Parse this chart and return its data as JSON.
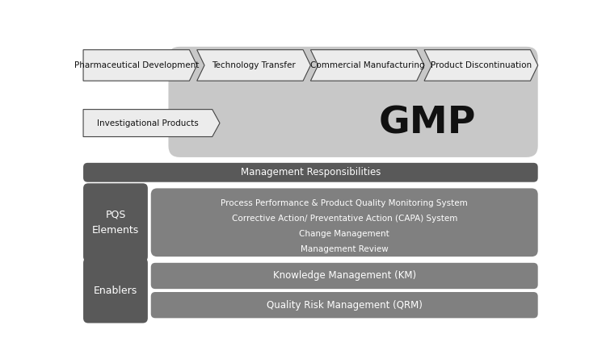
{
  "background_color": "#ffffff",
  "fig_width": 7.5,
  "fig_height": 4.5,
  "dpi": 100,
  "lifecycle_steps": [
    "Pharmaceutical Development",
    "Technology Transfer",
    "Commercial Manufacturing",
    "Product Discontinuation"
  ],
  "investigational": "Investigational Products",
  "gmp_label": "GMP",
  "management_bar": "Management Responsibilities",
  "pqs_label": "PQS\nElements",
  "pqs_items": [
    "Process Performance & Product Quality Monitoring System",
    "Corrective Action/ Preventative Action (CAPA) System",
    "Change Management",
    "Management Review"
  ],
  "enablers_label": "Enablers",
  "enablers_items": [
    "Knowledge Management (KM)",
    "Quality Risk Management (QRM)"
  ],
  "color_gmp_bg": "#c8c8c8",
  "color_dark_gray": "#595959",
  "color_mid_gray": "#808080",
  "color_chevron_fill": "#ececec",
  "color_chevron_edge": "#444444",
  "color_white": "#ffffff",
  "color_text_dark": "#111111",
  "color_text_white": "#ffffff",
  "lifecycle_fontsize": 7.5,
  "inv_fontsize": 7.5,
  "gmp_fontsize": 34,
  "mgmt_fontsize": 8.5,
  "pqs_label_fontsize": 9,
  "pqs_item_fontsize": 7.5,
  "enablers_label_fontsize": 9,
  "enablers_item_fontsize": 8.5
}
